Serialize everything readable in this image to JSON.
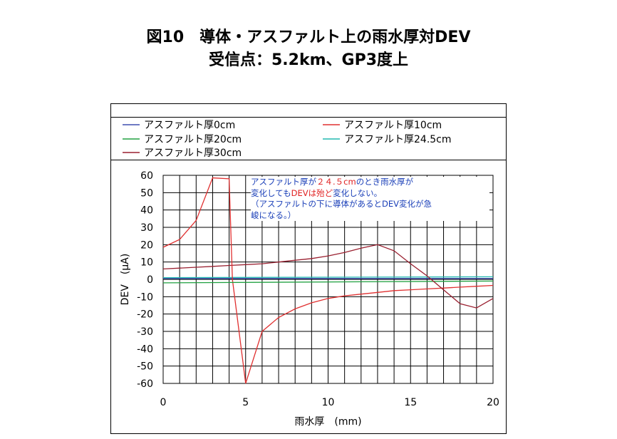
{
  "title_line1": "図10　導体・アスファルト上の雨水厚対DEV",
  "title_line2": "受信点：5.2km、GP3度上",
  "annotation": {
    "part1": "アスファルト厚が",
    "highlight": "２４.５cm",
    "part2": "のとき雨水厚が",
    "line2a": "変化しても",
    "line2b_red": "DEVは殆ど",
    "line2c": "変化しない。",
    "line3": "（アスファルトの下に導体があるとDEV変化が急",
    "line4": "峻になる。）"
  },
  "chart_data": {
    "type": "line",
    "xlabel": "雨水厚　(mm)",
    "ylabel": "DEV　(μA)",
    "xlim": [
      0,
      20
    ],
    "ylim": [
      -60,
      60
    ],
    "xticks": [
      "0",
      "5",
      "10",
      "15",
      "20"
    ],
    "yticks": [
      "60",
      "50",
      "40",
      "30",
      "20",
      "10",
      "0",
      "-10",
      "-20",
      "-30",
      "-40",
      "-50",
      "-60"
    ],
    "grid": true,
    "legend_position": "top",
    "series": [
      {
        "name": "アスファルト厚0cm",
        "color": "#3f4fb0",
        "x": [
          0,
          20
        ],
        "y": [
          0.5,
          0.5
        ]
      },
      {
        "name": "アスファルト厚10cm",
        "color": "#e03030",
        "x": [
          4.2,
          5,
          6,
          7,
          8,
          9,
          10,
          11,
          12,
          13,
          14,
          15,
          16,
          17,
          18,
          19,
          20
        ],
        "y": [
          0,
          -60,
          -30,
          -22,
          -17,
          -13.5,
          -11,
          -9.5,
          -8.5,
          -7.5,
          -6.5,
          -6,
          -5.5,
          -5,
          -4.5,
          -4,
          -3.5
        ]
      },
      {
        "name": "アスファルト厚20cm",
        "color": "#20a040",
        "x": [
          0,
          20
        ],
        "y": [
          -2,
          -1
        ]
      },
      {
        "name": "アスファルト厚24.5cm",
        "color": "#20b8b0",
        "x": [
          0,
          20
        ],
        "y": [
          1,
          1.5
        ]
      },
      {
        "name": "アスファルト厚30cm",
        "color": "#9a2030",
        "x": [
          0,
          1,
          2,
          3,
          4,
          5,
          6,
          7,
          8,
          9,
          10,
          11,
          12,
          13,
          14,
          15,
          16,
          17,
          18,
          19,
          20
        ],
        "y": [
          6,
          6.5,
          7,
          7.5,
          8,
          8.5,
          9,
          10,
          11,
          12,
          13.5,
          15.5,
          18,
          20,
          16.5,
          9,
          2,
          -6,
          -14,
          -16.5,
          -11
        ]
      },
      {
        "name": "",
        "color": "#e03030",
        "x": [
          0,
          1,
          2,
          3,
          4,
          4.2
        ],
        "y": [
          18.5,
          23,
          34,
          58.5,
          58,
          0
        ]
      }
    ]
  }
}
